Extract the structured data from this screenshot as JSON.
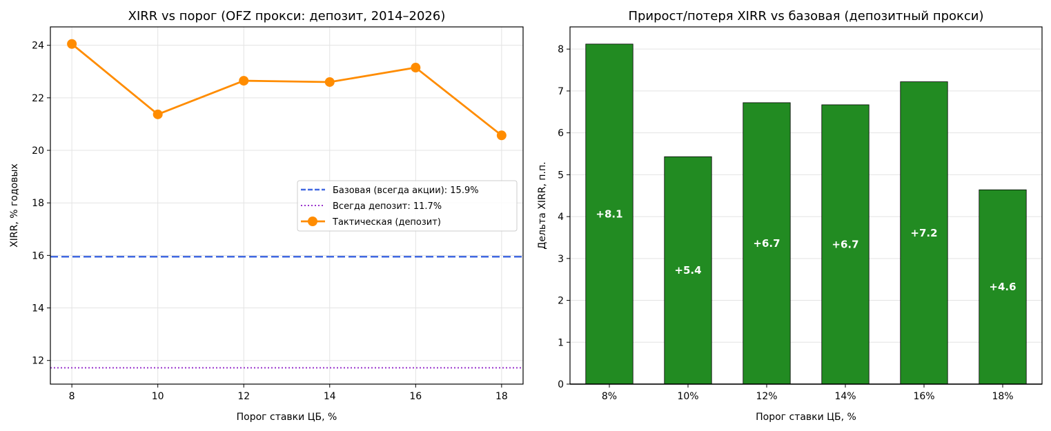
{
  "chart_data": [
    {
      "type": "line",
      "title": "XIRR vs порог (OFZ прокси: депозит, 2014–2026)",
      "xlabel": "Порог ставки ЦБ, %",
      "ylabel": "XIRR, % годовых",
      "x": [
        8,
        10,
        12,
        14,
        16,
        18
      ],
      "x_ticks": [
        "8",
        "10",
        "12",
        "14",
        "16",
        "18"
      ],
      "xlim": [
        7.5,
        18.5
      ],
      "ylim": [
        11.1,
        24.7
      ],
      "y_ticks": [
        "12",
        "14",
        "16",
        "18",
        "20",
        "22",
        "24"
      ],
      "grid": true,
      "legend_position": "center-right",
      "series": [
        {
          "name": "Тактическая (депозит)",
          "values": [
            24.05,
            21.37,
            22.65,
            22.6,
            23.15,
            20.57
          ],
          "color": "#ff8c00",
          "style": "solid-marker"
        }
      ],
      "reference_lines": [
        {
          "name": "Базовая (всегда акции): 15.9%",
          "value": 15.95,
          "color": "#4169e1",
          "style": "dashed"
        },
        {
          "name": "Всегда депозит: 11.7%",
          "value": 11.72,
          "color": "#9932cc",
          "style": "dotted"
        }
      ]
    },
    {
      "type": "bar",
      "title": "Прирост/потеря XIRR vs базовая (депозитный прокси)",
      "xlabel": "Порог ставки ЦБ, %",
      "ylabel": "Дельта XIRR, п.п.",
      "categories": [
        "8%",
        "10%",
        "12%",
        "14%",
        "16%",
        "18%"
      ],
      "values": [
        8.12,
        5.43,
        6.72,
        6.67,
        7.22,
        4.64
      ],
      "data_labels": [
        "+8.1",
        "+5.4",
        "+6.7",
        "+6.7",
        "+7.2",
        "+4.6"
      ],
      "ylim": [
        0,
        8.53
      ],
      "y_ticks": [
        "0",
        "1",
        "2",
        "3",
        "4",
        "5",
        "6",
        "7",
        "8"
      ],
      "grid": true,
      "bar_color": "#228b22"
    }
  ]
}
